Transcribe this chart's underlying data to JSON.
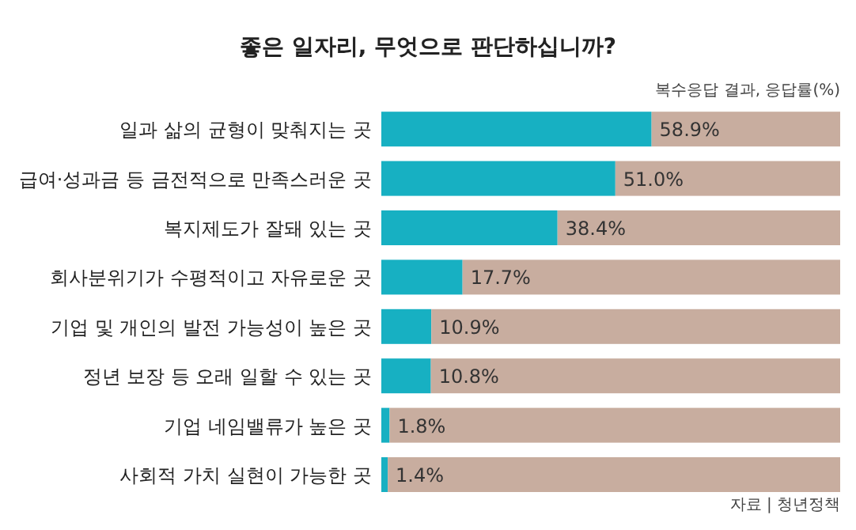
{
  "chart_data": {
    "type": "bar",
    "orientation": "horizontal",
    "stacked": true,
    "title": "좋은 일자리, 무엇으로 판단하십니까?",
    "subtitle": "복수응답 결과, 응답률(%)",
    "categories": [
      "일과 삶의 균형이 맞춰지는 곳",
      "급여·성과금 등 금전적으로 만족스러운 곳",
      "복지제도가 잘돼 있는 곳",
      "회사분위기가 수평적이고 자유로운 곳",
      "기업 및 개인의 발전 가능성이 높은 곳",
      "정년 보장 등 오래 일할 수 있는 곳",
      "기업 네임밸류가 높은 곳",
      "사회적 가치 실현이 가능한 곳"
    ],
    "series": [
      {
        "color": "#17b0c2",
        "values": [
          58.9,
          51.0,
          38.4,
          17.7,
          10.9,
          10.8,
          1.8,
          1.4
        ],
        "value_labels": [
          "58.9%",
          "51.0%",
          "38.4%",
          "17.7%",
          "10.9%",
          "10.8%",
          "1.8%",
          "1.4%"
        ]
      },
      {
        "color": "#c8ad9f",
        "values": [
          41.1,
          49.0,
          61.6,
          82.3,
          89.1,
          89.2,
          98.2,
          98.6
        ]
      }
    ],
    "xlim": [
      0,
      100
    ],
    "tick_labels": "y",
    "annotations": [
      "자료 | 청년정책"
    ]
  }
}
